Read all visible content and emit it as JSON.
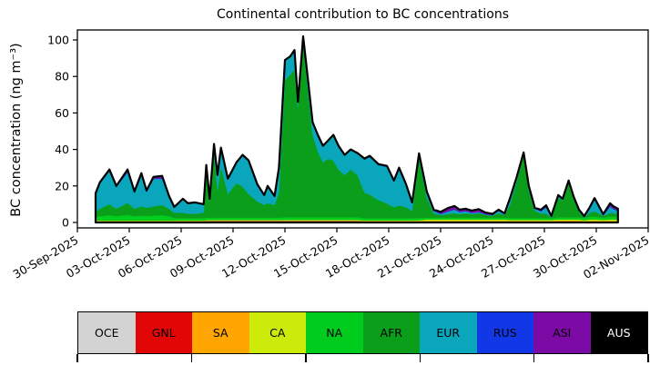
{
  "figure": {
    "title": "Continental contribution to BC concentrations",
    "ylabel": "BC concentration (ng m⁻³)",
    "background": "#ffffff",
    "axis_color": "#000000"
  },
  "chart_data": {
    "type": "area",
    "stacked": true,
    "title": "Continental contribution to BC concentrations",
    "xlabel": "",
    "ylabel": "BC concentration (ng m⁻³)",
    "ylim": [
      -3,
      106
    ],
    "yticks": [
      0,
      20,
      40,
      60,
      80,
      100
    ],
    "grid": false,
    "legend_position": "bottom-colorbar-strip",
    "total_line_color": "#000000",
    "xlim_days": [
      0,
      33
    ],
    "xtick_days": [
      0,
      3,
      6,
      9,
      12,
      15,
      18,
      21,
      24,
      27,
      30,
      33
    ],
    "xtick_labels": [
      "30-Sep-2025",
      "03-Oct-2025",
      "06-Oct-2025",
      "09-Oct-2025",
      "12-Oct-2025",
      "15-Oct-2025",
      "18-Oct-2025",
      "21-Oct-2025",
      "24-Oct-2025",
      "27-Oct-2025",
      "30-Oct-2025",
      "02-Nov-2025"
    ],
    "x_days": [
      1.05,
      1.3,
      1.85,
      2.25,
      2.9,
      3.3,
      3.7,
      4.0,
      4.4,
      4.9,
      5.3,
      5.6,
      6.1,
      6.4,
      6.8,
      7.3,
      7.45,
      7.65,
      7.9,
      8.1,
      8.3,
      8.7,
      9.2,
      9.55,
      9.9,
      10.4,
      10.8,
      11.0,
      11.4,
      11.65,
      12.0,
      12.3,
      12.55,
      12.75,
      13.05,
      13.3,
      13.6,
      13.9,
      14.2,
      14.5,
      14.8,
      15.1,
      15.45,
      15.8,
      16.2,
      16.6,
      16.9,
      17.4,
      17.9,
      18.3,
      18.6,
      19.0,
      19.35,
      19.75,
      20.2,
      20.6,
      21.0,
      21.45,
      21.8,
      22.1,
      22.45,
      22.8,
      23.2,
      23.6,
      24.0,
      24.35,
      24.7,
      25.0,
      25.4,
      25.8,
      26.1,
      26.45,
      26.8,
      27.1,
      27.4,
      27.8,
      28.05,
      28.4,
      28.7,
      29.0,
      29.3,
      29.6,
      29.9,
      30.4,
      30.8,
      31.0,
      31.15,
      31.25
    ],
    "series": [
      {
        "name": "OCE",
        "color": "#d3d3d3",
        "values": [
          0.5,
          0.5,
          0.5,
          0.5,
          0.5,
          0.5,
          0.5,
          0.5,
          0.5,
          0.5,
          0.5,
          0.5,
          0.5,
          0.5,
          0.5,
          0.5,
          0.8,
          0.8,
          0.8,
          0.8,
          0.8,
          0.8,
          0.8,
          0.8,
          0.8,
          0.8,
          0.8,
          0.8,
          0.8,
          0.8,
          0.8,
          0.8,
          0.8,
          0.8,
          0.8,
          0.8,
          0.8,
          0.8,
          0.8,
          0.8,
          0.8,
          0.8,
          0.8,
          0.8,
          0.8,
          0.5,
          0.5,
          0.5,
          0.5,
          0.5,
          0.5,
          0.5,
          0.5,
          0.5,
          0.4,
          0.4,
          0.4,
          0.4,
          0.4,
          0.4,
          0.4,
          0.4,
          0.4,
          0.4,
          0.4,
          0.4,
          0.4,
          0.5,
          0.5,
          0.5,
          0.5,
          0.5,
          0.4,
          0.4,
          0.4,
          0.6,
          0.6,
          0.6,
          0.6,
          0.6,
          0.3,
          0.4,
          0.4,
          0.4,
          0.4,
          0.4,
          0.4,
          0.4
        ]
      },
      {
        "name": "GNL",
        "color": "#e30606",
        "values": [
          0,
          0,
          0,
          0,
          0,
          0,
          0,
          0,
          0,
          0,
          0,
          0,
          0,
          0,
          0,
          0,
          0,
          0,
          0,
          0,
          0,
          0,
          0,
          0,
          0,
          0,
          0,
          0,
          0,
          0,
          0,
          0,
          0,
          0,
          0,
          0,
          0,
          0,
          0,
          0,
          0,
          0,
          0,
          0,
          0,
          0,
          0,
          0,
          0,
          0,
          0,
          0,
          0,
          0,
          0,
          0,
          0,
          0,
          0,
          0,
          0,
          0,
          0,
          0,
          0,
          0,
          0,
          0,
          0,
          0,
          0,
          0,
          0,
          0,
          0,
          0,
          0,
          0,
          0,
          0,
          0,
          0,
          0,
          0,
          0,
          0,
          0,
          0
        ]
      },
      {
        "name": "SA",
        "color": "#ffa600",
        "values": [
          0.3,
          0.3,
          0.3,
          0.3,
          0.3,
          0.3,
          0.3,
          0.3,
          0.3,
          0.3,
          0.3,
          0.3,
          0.3,
          0.3,
          0.3,
          0.3,
          0.3,
          0.3,
          0.3,
          0.3,
          0.3,
          0.3,
          0.3,
          0.3,
          0.3,
          0.3,
          0.3,
          0.3,
          0.3,
          0.3,
          0.3,
          0.3,
          0.3,
          0.3,
          0.3,
          0.3,
          0.3,
          0.3,
          0.3,
          0.3,
          0.3,
          0.3,
          0.3,
          0.3,
          0.3,
          0.3,
          0.3,
          0.3,
          0.3,
          0.3,
          0.3,
          0.3,
          0.3,
          0.3,
          0.5,
          0.5,
          0.5,
          0.5,
          0.5,
          0.5,
          0.5,
          0.5,
          0.5,
          0.5,
          0.5,
          0.5,
          0.5,
          0.4,
          0.4,
          0.4,
          0.4,
          0.4,
          0.4,
          0.4,
          0.4,
          0.4,
          0.4,
          0.4,
          0.4,
          0.4,
          0.3,
          0.4,
          0.4,
          0.4,
          0.4,
          0.4,
          0.4,
          0.4
        ]
      },
      {
        "name": "CA",
        "color": "#cdeb0a",
        "values": [
          0.2,
          0.2,
          0.2,
          0.2,
          0.2,
          0.2,
          0.2,
          0.2,
          0.2,
          0.2,
          0.2,
          0.2,
          0.2,
          0.2,
          0.2,
          0.2,
          0.2,
          0.2,
          0.2,
          0.2,
          0.2,
          0.2,
          0.2,
          0.2,
          0.2,
          0.2,
          0.2,
          0.2,
          0.2,
          0.2,
          0.3,
          0.3,
          0.3,
          0.3,
          0.3,
          0.3,
          0.3,
          0.3,
          0.3,
          0.3,
          0.3,
          0.3,
          0.3,
          0.3,
          0.3,
          0.3,
          0.3,
          0.3,
          0.3,
          0.3,
          0.3,
          0.3,
          0.3,
          0.4,
          0.7,
          0.7,
          0.7,
          0.7,
          0.7,
          0.7,
          0.7,
          0.7,
          0.7,
          0.7,
          0.7,
          0.7,
          0.7,
          0.5,
          0.5,
          0.5,
          0.5,
          0.5,
          0.6,
          0.6,
          0.6,
          0.6,
          0.6,
          0.6,
          0.6,
          0.6,
          0.6,
          0.8,
          0.8,
          0.6,
          0.8,
          0.8,
          0.8,
          0.8
        ]
      },
      {
        "name": "NA",
        "color": "#00cc1e",
        "values": [
          2,
          2.5,
          3,
          2.5,
          3.2,
          2.5,
          2.8,
          2.5,
          2.8,
          3,
          2.5,
          1.3,
          1.3,
          1.3,
          1.3,
          1.3,
          1.3,
          1.3,
          1.3,
          1.3,
          1.3,
          1.3,
          1.3,
          1.3,
          1.3,
          1.3,
          1.3,
          1.3,
          1.3,
          1.3,
          1.5,
          1.5,
          1.5,
          1.5,
          1.5,
          1.5,
          1.5,
          1.5,
          1.5,
          1.5,
          1.5,
          1.5,
          1.5,
          1.5,
          1.5,
          1.2,
          1.2,
          1.2,
          1.2,
          1.2,
          1.2,
          1.2,
          1.2,
          1.2,
          1.0,
          1.0,
          1.0,
          1.0,
          1.0,
          1.0,
          1.0,
          1.0,
          1.0,
          1.0,
          1.0,
          1.0,
          1.0,
          1.0,
          1.0,
          1.0,
          1.0,
          1.0,
          1.0,
          1.0,
          1.0,
          1.2,
          1.2,
          1.2,
          1.2,
          1.2,
          1.2,
          1.6,
          1.6,
          1.2,
          1.6,
          1.6,
          1.6,
          1.6
        ]
      },
      {
        "name": "AFR",
        "color": "#0a9e1a",
        "values": [
          3,
          4,
          6,
          4,
          6.5,
          4,
          5,
          4.5,
          5,
          5.5,
          4,
          3,
          3,
          2.5,
          2.5,
          3,
          26,
          9,
          35,
          15,
          28,
          13,
          19,
          17,
          13,
          9,
          7,
          8,
          7,
          14,
          75,
          78,
          81,
          60,
          96,
          72,
          45,
          36,
          30,
          32,
          31,
          26,
          23,
          26,
          23,
          14,
          13,
          10,
          8,
          6,
          7,
          6,
          4,
          33,
          11,
          2.5,
          1.5,
          2,
          2.5,
          2,
          2.5,
          2,
          2.5,
          1.5,
          1.2,
          2.5,
          1.5,
          7,
          20,
          35,
          15,
          4,
          2.5,
          2.5,
          0.3,
          11,
          9,
          19,
          10,
          3,
          0.3,
          2,
          3,
          1,
          2,
          1.8,
          1.5,
          1.4
        ]
      },
      {
        "name": "EUR",
        "color": "#09a6bc",
        "values": [
          9.7,
          14,
          18.2,
          11.9,
          16.7,
          8.7,
          16.7,
          8.7,
          15.1,
          14.4,
          6.2,
          3,
          7.5,
          5.5,
          6,
          4.5,
          2.7,
          1.2,
          5.2,
          8.2,
          10.2,
          8.2,
          11.2,
          17.2,
          18.2,
          9.2,
          5.2,
          9.2,
          4.7,
          13.2,
          10.9,
          9.9,
          10.4,
          2.9,
          2.9,
          5.9,
          6.9,
          8.9,
          8.9,
          9.9,
          13.9,
          12.9,
          10.9,
          10.9,
          11.9,
          18.1,
          20.6,
          19.1,
          20.1,
          14.1,
          20.1,
          12.1,
          4.1,
          1.5,
          2.7,
          1.2,
          0.5,
          1.4,
          1.9,
          1.0,
          1.0,
          0.5,
          0.5,
          0.3,
          0.2,
          1.2,
          0.3,
          3.1,
          2.1,
          0.5,
          2.1,
          1.1,
          1.1,
          3.3,
          0.3,
          0.7,
          0.7,
          0.7,
          0.7,
          0.7,
          0.6,
          2.1,
          6.3,
          0.3,
          3.4,
          2.2,
          1.9,
          1.5
        ]
      },
      {
        "name": "RUS",
        "color": "#1137e6",
        "values": [
          0.3,
          0.3,
          0.3,
          0.3,
          0.3,
          0.3,
          0.3,
          0.3,
          0.3,
          0.3,
          0.3,
          0.2,
          0.2,
          0.2,
          0.2,
          0.2,
          0.2,
          0.2,
          0.2,
          0.2,
          0.2,
          0.2,
          0.2,
          0.2,
          0.2,
          0.2,
          0.2,
          0.2,
          0.2,
          0.2,
          0.2,
          0.2,
          0.2,
          0.2,
          0.2,
          0.2,
          0.2,
          0.2,
          0.2,
          0.2,
          0.2,
          0.2,
          0.2,
          0.2,
          0.2,
          0.2,
          0.2,
          0.2,
          0.2,
          0.2,
          0.2,
          0.2,
          0.2,
          0.2,
          0.2,
          0.2,
          0.2,
          0.2,
          0.2,
          0.2,
          0.2,
          0.2,
          0.2,
          0.2,
          0.2,
          0.2,
          0.2,
          0.2,
          0.2,
          0.2,
          0.2,
          0.2,
          0.2,
          0.2,
          0.2,
          0.2,
          0.2,
          0.2,
          0.2,
          0.2,
          0.2,
          0.4,
          0.4,
          0.3,
          0.4,
          0.4,
          0.4,
          0.4
        ]
      },
      {
        "name": "ASI",
        "color": "#7c0aa5",
        "values": [
          0,
          0.2,
          0.5,
          0.3,
          1.3,
          0.5,
          1.2,
          0.5,
          0.8,
          1.3,
          0.5,
          0,
          0,
          0,
          0,
          0,
          0,
          0,
          0,
          0,
          0,
          0,
          0,
          0,
          0,
          0,
          0,
          0,
          0,
          0,
          0,
          0,
          0,
          0,
          0,
          0,
          0,
          0,
          0,
          0,
          0,
          0,
          0,
          0,
          0,
          0.4,
          0.4,
          0.4,
          0.4,
          0.4,
          0.4,
          0.4,
          0.4,
          0.8,
          0.5,
          0.5,
          1.0,
          1.8,
          1.8,
          1.2,
          1.2,
          1.2,
          1.5,
          0.8,
          0.5,
          0.5,
          0.4,
          0.3,
          0.3,
          0.3,
          0.3,
          0.3,
          0.8,
          1.0,
          0.4,
          0.3,
          0.3,
          0.3,
          0.3,
          0.3,
          0,
          0.3,
          0.5,
          0.4,
          1.5,
          1.2,
          1.0,
          1.0
        ]
      },
      {
        "name": "AUS",
        "color": "#000000",
        "values": [
          0,
          0,
          0,
          0,
          0,
          0,
          0,
          0,
          0,
          0,
          0,
          0,
          0,
          0,
          0,
          0,
          0,
          0,
          0,
          0,
          0,
          0,
          0,
          0,
          0,
          0,
          0,
          0,
          0,
          0,
          0,
          0,
          0,
          0,
          0,
          0,
          0,
          0,
          0,
          0,
          0,
          0,
          0,
          0,
          0,
          0,
          0,
          0,
          0,
          0,
          0,
          0,
          0,
          0,
          0,
          0,
          0,
          0,
          0,
          0,
          0,
          0,
          0,
          0,
          0,
          0,
          0,
          0,
          0,
          0,
          0,
          0,
          0,
          0,
          0,
          0,
          0,
          0,
          0,
          0,
          0,
          0,
          0,
          0,
          0,
          0,
          0,
          0
        ]
      }
    ]
  },
  "legend": {
    "entries": [
      {
        "label": "OCE",
        "color": "#d3d3d3",
        "text_color": "#000000"
      },
      {
        "label": "GNL",
        "color": "#e30606",
        "text_color": "#000000"
      },
      {
        "label": "SA",
        "color": "#ffa600",
        "text_color": "#000000"
      },
      {
        "label": "CA",
        "color": "#cdeb0a",
        "text_color": "#000000"
      },
      {
        "label": "NA",
        "color": "#00cc1e",
        "text_color": "#000000"
      },
      {
        "label": "AFR",
        "color": "#0a9e1a",
        "text_color": "#000000"
      },
      {
        "label": "EUR",
        "color": "#09a6bc",
        "text_color": "#000000"
      },
      {
        "label": "RUS",
        "color": "#1137e6",
        "text_color": "#000000"
      },
      {
        "label": "ASI",
        "color": "#7c0aa5",
        "text_color": "#000000"
      },
      {
        "label": "AUS",
        "color": "#000000",
        "text_color": "#ffffff"
      }
    ]
  }
}
